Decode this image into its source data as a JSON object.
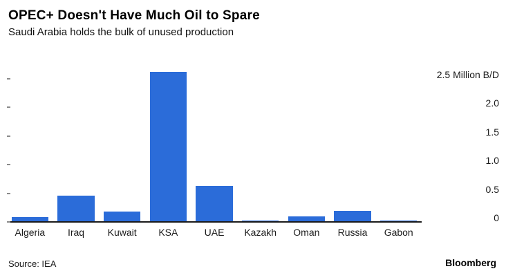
{
  "header": {
    "title": "OPEC+ Doesn't Have Much Oil to Spare",
    "subtitle": "Saudi Arabia holds the bulk of unused production"
  },
  "footer": {
    "source": "Source: IEA",
    "brand": "Bloomberg"
  },
  "chart_data": {
    "type": "bar",
    "title": "OPEC+ Doesn't Have Much Oil to Spare",
    "subtitle": "Saudi Arabia holds the bulk of unused production",
    "categories": [
      "Algeria",
      "Iraq",
      "Kuwait",
      "KSA",
      "UAE",
      "Kazakh",
      "Oman",
      "Russia",
      "Gabon"
    ],
    "values": [
      0.07,
      0.45,
      0.17,
      2.6,
      0.62,
      0.015,
      0.08,
      0.18,
      0.015
    ],
    "unit": "Million B/D",
    "ylim": [
      0,
      2.75
    ],
    "yticks": [
      {
        "value": 2.5,
        "label": "2.5 Million B/D"
      },
      {
        "value": 2.0,
        "label": "2.0"
      },
      {
        "value": 1.5,
        "label": "1.5"
      },
      {
        "value": 1.0,
        "label": "1.0"
      },
      {
        "value": 0.5,
        "label": "0.5"
      },
      {
        "value": 0.0,
        "label": "0"
      }
    ],
    "bar_color": "#2b6cd9",
    "grid": "off",
    "legend": "none",
    "source": "IEA",
    "brand": "Bloomberg"
  }
}
